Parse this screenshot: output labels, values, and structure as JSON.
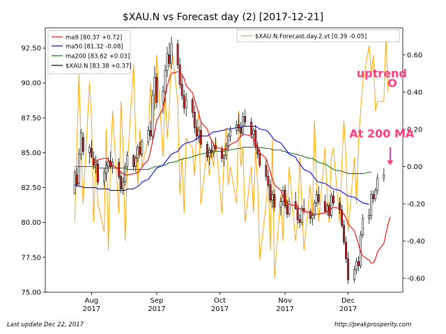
{
  "chart_data": {
    "type": "line",
    "title": "$XAU.N vs Forecast day (2)  [2017-12-21]",
    "x_ticks": [
      {
        "date": "2017-08-01",
        "month": "Aug",
        "year": "2017"
      },
      {
        "date": "2017-09-01",
        "month": "Sep",
        "year": "2017"
      },
      {
        "date": "2017-10-01",
        "month": "Oct",
        "year": "2017"
      },
      {
        "date": "2017-11-01",
        "month": "Nov",
        "year": "2017"
      },
      {
        "date": "2017-12-01",
        "month": "Dec",
        "year": "2017"
      }
    ],
    "xlim": [
      "2017-07-10",
      "2017-12-27"
    ],
    "ylim_left": [
      75,
      93.95
    ],
    "ylim_right": [
      -0.675,
      0.745
    ],
    "y_ticks_left": [
      "75.00",
      "77.50",
      "80.00",
      "82.50",
      "85.00",
      "87.50",
      "90.00",
      "92.50"
    ],
    "y_ticks_right": [
      "-0.60",
      "-0.40",
      "-0.20",
      "0.00",
      "0.20",
      "0.40",
      "0.60"
    ],
    "legend_left_position": "top-left",
    "legend_right_position": "top-right",
    "legend_left": [
      {
        "label": "ma9 [80.37 +0.72]",
        "color": "#ff0000"
      },
      {
        "label": "ma50 [81.32 -0.08]",
        "color": "#0000ff"
      },
      {
        "label": "ma200 [83.62 +0.03]",
        "color": "#008000"
      },
      {
        "label": "$XAU.N [83.38 +0.37]",
        "color": "#000000"
      }
    ],
    "legend_right": [
      {
        "label": "$XAU.N.Forecast.day.2.vt [0.39 -0.05]",
        "color": "#ffa500"
      }
    ],
    "annotations": [
      {
        "text": "uptrend",
        "color": "#ff3d7f",
        "x": "2017-12-17",
        "y": 90.4
      },
      {
        "text": "O",
        "color": "#ff3d7f",
        "x": "2017-12-22",
        "y": 89.7
      },
      {
        "text": "At 200 MA",
        "color": "#ff3d7f",
        "x": "2017-12-17",
        "y": 86.1
      }
    ],
    "arrow": {
      "color": "#ff3d7f",
      "x": "2017-12-21",
      "y_from": 85.4,
      "y_to": 84.1
    },
    "series": [
      {
        "name": "$XAU.N",
        "kind": "candlestick",
        "axis": "left",
        "up_color": "#ffffff",
        "down_color": "#d62728",
        "start": "2017-07-24",
        "business_days": true,
        "ohlc": [
          [
            82.1,
            83.8,
            82.0,
            83.6
          ],
          [
            83.4,
            83.9,
            82.6,
            82.7
          ],
          [
            82.8,
            85.3,
            82.6,
            84.9
          ],
          [
            84.9,
            86.7,
            84.5,
            86.4
          ],
          [
            86.1,
            86.5,
            84.8,
            85.1
          ],
          [
            85.0,
            85.6,
            84.2,
            85.4
          ],
          [
            85.3,
            85.9,
            84.6,
            84.7
          ],
          [
            84.6,
            85.1,
            83.8,
            84.1
          ],
          [
            84.1,
            84.8,
            83.5,
            84.3
          ],
          [
            84.2,
            84.5,
            82.7,
            82.9
          ],
          [
            82.9,
            83.9,
            82.5,
            83.6
          ],
          [
            83.5,
            84.4,
            83.0,
            84.1
          ],
          [
            84.0,
            84.7,
            83.6,
            84.4
          ],
          [
            84.4,
            85.1,
            83.9,
            84.0
          ],
          [
            84.0,
            84.6,
            83.5,
            84.3
          ],
          [
            84.3,
            84.6,
            83.1,
            83.3
          ],
          [
            83.3,
            83.6,
            82.1,
            82.4
          ],
          [
            82.4,
            83.2,
            82.0,
            82.9
          ],
          [
            82.9,
            84.3,
            82.6,
            84.0
          ],
          [
            84.0,
            85.1,
            83.7,
            84.8
          ],
          [
            84.8,
            84.9,
            83.7,
            84.0
          ],
          [
            84.0,
            84.8,
            83.6,
            84.6
          ],
          [
            84.6,
            85.6,
            84.3,
            85.4
          ],
          [
            85.4,
            85.8,
            84.7,
            84.9
          ],
          [
            84.9,
            86.0,
            84.7,
            85.8
          ],
          [
            85.8,
            86.9,
            85.5,
            86.6
          ],
          [
            86.6,
            87.3,
            85.9,
            86.2
          ],
          [
            86.2,
            89.5,
            85.8,
            89.1
          ],
          [
            89.2,
            91.2,
            88.1,
            90.4
          ],
          [
            90.4,
            90.7,
            88.2,
            88.6
          ],
          [
            88.6,
            89.8,
            87.8,
            89.4
          ],
          [
            89.4,
            91.3,
            88.7,
            90.9
          ],
          [
            90.9,
            92.6,
            90.4,
            92.1
          ],
          [
            92.0,
            92.9,
            91.1,
            91.4
          ],
          [
            91.4,
            93.3,
            91.0,
            92.8
          ],
          [
            92.8,
            93.1,
            91.0,
            91.3
          ],
          [
            91.3,
            91.8,
            89.6,
            89.9
          ],
          [
            89.9,
            90.5,
            88.8,
            89.1
          ],
          [
            89.1,
            89.5,
            87.8,
            88.2
          ],
          [
            88.2,
            89.3,
            87.6,
            88.8
          ],
          [
            88.8,
            89.0,
            87.5,
            87.9
          ],
          [
            87.9,
            88.4,
            86.4,
            86.8
          ],
          [
            86.8,
            87.4,
            85.9,
            86.2
          ],
          [
            86.2,
            86.9,
            85.7,
            86.6
          ],
          [
            86.6,
            87.2,
            85.3,
            85.6
          ],
          [
            85.6,
            85.8,
            84.4,
            84.7
          ],
          [
            84.7,
            85.4,
            84.1,
            85.2
          ],
          [
            85.2,
            85.9,
            84.6,
            85.0
          ],
          [
            85.0,
            85.7,
            84.7,
            85.5
          ],
          [
            85.5,
            86.1,
            85.1,
            85.3
          ],
          [
            85.3,
            85.5,
            84.3,
            84.6
          ],
          [
            84.6,
            84.9,
            84.0,
            84.8
          ],
          [
            84.8,
            85.7,
            84.5,
            85.5
          ],
          [
            85.5,
            86.4,
            85.1,
            86.2
          ],
          [
            86.2,
            86.9,
            85.8,
            86.6
          ],
          [
            86.6,
            87.3,
            86.3,
            87.0
          ],
          [
            87.0,
            87.8,
            86.5,
            86.8
          ],
          [
            86.8,
            87.2,
            86.1,
            86.4
          ],
          [
            86.4,
            87.9,
            86.2,
            87.6
          ],
          [
            87.6,
            88.1,
            86.9,
            87.2
          ],
          [
            87.2,
            87.5,
            86.0,
            86.3
          ],
          [
            86.3,
            86.8,
            85.5,
            86.6
          ],
          [
            86.6,
            87.0,
            85.2,
            85.4
          ],
          [
            85.4,
            85.8,
            84.6,
            84.9
          ],
          [
            84.9,
            85.3,
            83.9,
            84.1
          ],
          [
            84.1,
            84.5,
            83.0,
            83.3
          ],
          [
            83.3,
            83.8,
            82.5,
            82.7
          ],
          [
            82.7,
            83.1,
            81.4,
            81.6
          ],
          [
            81.6,
            82.3,
            81.0,
            82.0
          ],
          [
            82.0,
            82.4,
            80.8,
            81.1
          ],
          [
            81.1,
            81.8,
            80.5,
            81.5
          ],
          [
            81.5,
            82.6,
            81.2,
            82.3
          ],
          [
            82.3,
            82.7,
            81.0,
            81.2
          ],
          [
            81.2,
            81.6,
            80.3,
            80.6
          ],
          [
            80.6,
            81.8,
            80.4,
            81.5
          ],
          [
            81.5,
            82.2,
            80.9,
            81.0
          ],
          [
            81.0,
            81.3,
            79.9,
            80.2
          ],
          [
            80.2,
            80.6,
            79.6,
            80.0
          ],
          [
            80.0,
            81.2,
            79.8,
            81.0
          ],
          [
            81.0,
            81.7,
            80.6,
            80.8
          ],
          [
            80.8,
            81.0,
            79.9,
            80.3
          ],
          [
            80.3,
            80.7,
            79.8,
            80.5
          ],
          [
            80.5,
            81.6,
            80.2,
            81.4
          ],
          [
            81.4,
            82.3,
            81.1,
            82.0
          ],
          [
            82.0,
            82.6,
            81.3,
            81.5
          ],
          [
            81.5,
            82.0,
            80.6,
            80.8
          ],
          [
            80.8,
            81.4,
            80.5,
            81.2
          ],
          [
            81.2,
            81.4,
            80.3,
            80.5
          ],
          [
            80.5,
            82.1,
            80.3,
            81.9
          ],
          [
            81.9,
            82.3,
            81.2,
            81.4
          ],
          [
            81.4,
            81.8,
            80.6,
            80.9
          ],
          [
            80.9,
            81.3,
            79.6,
            79.8
          ],
          [
            79.8,
            80.2,
            78.4,
            78.6
          ],
          [
            78.6,
            79.0,
            77.1,
            77.4
          ],
          [
            77.4,
            77.9,
            75.6,
            75.9
          ],
          [
            75.9,
            76.9,
            75.7,
            76.6
          ],
          [
            76.6,
            77.5,
            76.3,
            77.2
          ],
          [
            77.2,
            77.6,
            76.5,
            76.9
          ],
          [
            76.9,
            79.4,
            76.7,
            79.1
          ],
          [
            79.1,
            80.6,
            78.9,
            80.3
          ],
          [
            80.3,
            81.0,
            79.9,
            80.5
          ],
          [
            80.5,
            82.3,
            80.2,
            82.0
          ],
          [
            82.0,
            82.3,
            81.4,
            81.7
          ],
          [
            81.7,
            82.5,
            81.5,
            82.3
          ],
          [
            82.3,
            83.5,
            82.0,
            83.2
          ],
          [
            83.2,
            83.9,
            82.9,
            83.4
          ]
        ]
      },
      {
        "name": "ma9",
        "axis": "left",
        "color": "#ff0000",
        "start": "2017-08-03",
        "business_days": true,
        "values": [
          84.3,
          84.5,
          84.6,
          84.6,
          84.5,
          84.3,
          84.1,
          83.8,
          83.6,
          83.5,
          83.4,
          83.4,
          83.5,
          83.5,
          83.6,
          83.7,
          84.0,
          84.5,
          85.1,
          85.8,
          86.5,
          87.3,
          88.2,
          89.0,
          89.8,
          90.3,
          90.7,
          90.8,
          90.8,
          90.6,
          90.3,
          89.8,
          89.3,
          88.8,
          88.3,
          87.8,
          87.2,
          86.7,
          86.2,
          85.9,
          85.6,
          85.4,
          85.3,
          85.2,
          85.3,
          85.4,
          85.6,
          85.8,
          86.0,
          86.2,
          86.3,
          86.3,
          86.2,
          86.0,
          85.7,
          85.4,
          85.0,
          84.6,
          84.1,
          83.6,
          83.1,
          82.7,
          82.3,
          81.9,
          81.6,
          81.4,
          81.3,
          81.2,
          81.1,
          81.0,
          80.9,
          80.8,
          80.7,
          80.6,
          80.6,
          80.6,
          80.6,
          80.7,
          80.8,
          80.9,
          81.0,
          81.1,
          81.0,
          80.8,
          80.6,
          80.3,
          79.9,
          79.4,
          78.9,
          78.4,
          77.9,
          77.6,
          77.3,
          77.1,
          77.1,
          77.4,
          77.9,
          78.5,
          79.2,
          79.9,
          80.4
        ]
      },
      {
        "name": "ma50",
        "axis": "left",
        "color": "#0000ff",
        "start": "2017-07-24",
        "business_days": true,
        "values": [
          82.7,
          82.6,
          82.6,
          82.6,
          82.5,
          82.5,
          82.5,
          82.5,
          82.5,
          82.4,
          82.4,
          82.4,
          82.4,
          82.3,
          82.3,
          82.3,
          82.3,
          82.3,
          82.3,
          82.4,
          82.4,
          82.5,
          82.6,
          82.7,
          82.9,
          83.1,
          83.3,
          83.5,
          83.7,
          83.9,
          84.1,
          84.3,
          84.5,
          84.7,
          84.9,
          85.1,
          85.3,
          85.5,
          85.6,
          85.7,
          85.8,
          85.9,
          86.0,
          86.1,
          86.2,
          86.2,
          86.3,
          86.4,
          86.5,
          86.5,
          86.6,
          86.6,
          86.7,
          86.7,
          86.7,
          86.8,
          86.8,
          86.8,
          86.9,
          86.9,
          86.9,
          86.9,
          86.9,
          86.8,
          86.7,
          86.6,
          86.5,
          86.3,
          86.1,
          85.9,
          85.7,
          85.5,
          85.3,
          85.1,
          84.9,
          84.7,
          84.4,
          84.2,
          84.0,
          83.8,
          83.6,
          83.4,
          83.2,
          83.0,
          82.9,
          82.8,
          82.7,
          82.6,
          82.5,
          82.4,
          82.3,
          82.2,
          82.1,
          82.0,
          81.9,
          81.8,
          81.7,
          81.6,
          81.5,
          81.4,
          81.3
        ]
      },
      {
        "name": "ma200",
        "axis": "left",
        "color": "#008000",
        "start": "2017-07-24",
        "business_days": true,
        "values": [
          84.0,
          84.0,
          84.0,
          84.0,
          84.0,
          84.0,
          84.0,
          84.0,
          83.9,
          83.9,
          83.9,
          83.9,
          83.9,
          83.9,
          83.9,
          83.9,
          83.9,
          83.9,
          83.9,
          83.8,
          83.8,
          83.8,
          83.8,
          83.8,
          83.8,
          83.8,
          83.9,
          83.9,
          84.0,
          84.0,
          84.1,
          84.1,
          84.2,
          84.3,
          84.3,
          84.4,
          84.5,
          84.5,
          84.6,
          84.6,
          84.7,
          84.8,
          84.8,
          84.9,
          84.9,
          85.0,
          85.0,
          85.0,
          85.1,
          85.1,
          85.1,
          85.1,
          85.2,
          85.2,
          85.2,
          85.3,
          85.3,
          85.3,
          85.4,
          85.4,
          85.4,
          85.4,
          85.4,
          85.4,
          85.4,
          85.3,
          85.3,
          85.3,
          85.2,
          85.2,
          85.2,
          85.1,
          85.1,
          85.0,
          85.0,
          84.9,
          84.9,
          84.8,
          84.8,
          84.7,
          84.6,
          84.6,
          84.5,
          84.4,
          84.3,
          84.2,
          84.1,
          84.0,
          83.9,
          83.8,
          83.7,
          83.7,
          83.6,
          83.6,
          83.5,
          83.5,
          83.5,
          83.5,
          83.5,
          83.5,
          83.6,
          83.6
        ]
      },
      {
        "name": "$XAU.N.Forecast.day.2.vt",
        "axis": "right",
        "color": "#ffa500",
        "start": "2017-07-24",
        "business_days": true,
        "values": [
          -0.3,
          0.1,
          0.5,
          0.1,
          -0.2,
          0.45,
          0.25,
          -0.3,
          0.05,
          -0.2,
          -0.35,
          0.2,
          -0.45,
          0.0,
          0.3,
          -0.25,
          0.35,
          0.1,
          -0.4,
          0.0,
          0.55,
          0.15,
          -0.1,
          0.2,
          0.0,
          0.15,
          0.45,
          0.2,
          0.3,
          0.6,
          0.05,
          0.4,
          0.15,
          0.3,
          0.65,
          0.35,
          -0.15,
          0.05,
          -0.25,
          0.15,
          0.1,
          -0.05,
          0.2,
          0.3,
          -0.2,
          0.1,
          -0.05,
          0.1,
          0.0,
          0.15,
          -0.25,
          0.05,
          0.2,
          -0.1,
          0.0,
          -0.2,
          0.3,
          0.0,
          0.1,
          -0.3,
          0.0,
          -0.25,
          0.1,
          -0.1,
          -0.5,
          -0.2,
          -0.05,
          -0.45,
          0.15,
          -0.6,
          -0.15,
          -0.4,
          -0.1,
          -0.25,
          0.0,
          -0.4,
          -0.3,
          0.05,
          -0.2,
          -0.45,
          -0.1,
          -0.3,
          0.25,
          -0.1,
          -0.3,
          0.1,
          -0.15,
          -0.3,
          0.05,
          0.1,
          -0.3,
          0.0,
          0.25,
          0.05,
          -0.35,
          0.05,
          -0.2,
          0.15,
          0.3,
          0.45,
          0.65,
          0.5,
          0.6,
          0.3,
          0.35,
          0.35,
          0.7,
          0.4
        ]
      }
    ]
  },
  "footer": {
    "left": "Last update Dec 22, 2017",
    "right": "http://peakprosperity.com"
  }
}
